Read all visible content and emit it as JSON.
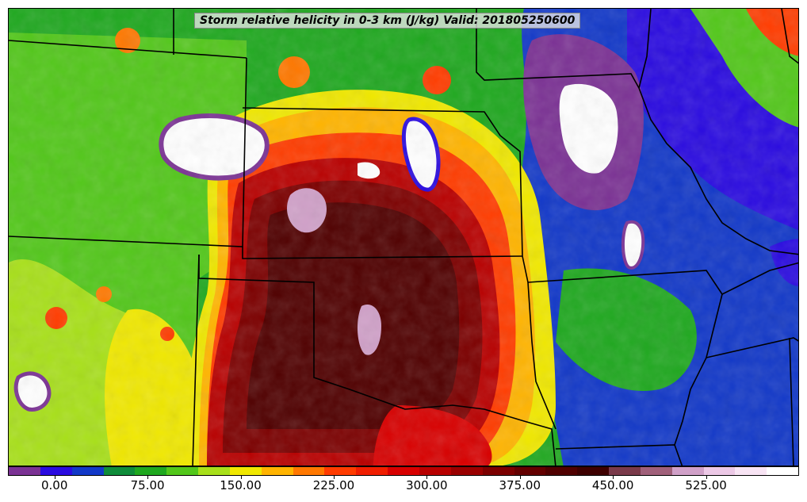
{
  "title": "Storm relative helicity in 0-3 km (J/kg) Valid: 201805250600",
  "colorbar": {
    "ticks": [
      "0.00",
      "75.00",
      "150.00",
      "225.00",
      "300.00",
      "375.00",
      "450.00",
      "525.00"
    ],
    "tick_values": [
      0,
      75,
      150,
      225,
      300,
      375,
      450,
      525
    ],
    "min": -37.5,
    "max": 600,
    "colors": [
      "#7b3294",
      "#2a0be0",
      "#1238c8",
      "#0f8c3a",
      "#1fa81f",
      "#52c71a",
      "#a8e01a",
      "#f0e800",
      "#ffb400",
      "#ff7800",
      "#ff3c00",
      "#f01e00",
      "#d80000",
      "#b80000",
      "#9a0000",
      "#7c0000",
      "#640000",
      "#500000",
      "#3e0000",
      "#7a3a4a",
      "#a0607a",
      "#d0a0c8",
      "#ecc8e6",
      "#f8e4f4",
      "#ffffff"
    ]
  },
  "palette": {
    "low": "#7b3294",
    "blue": "#2a0be0",
    "green": "#1a8a1a",
    "yellow": "#f0e800",
    "red": "#e01000",
    "dark_red": "#6a0000",
    "pink": "#d0a0c8"
  }
}
